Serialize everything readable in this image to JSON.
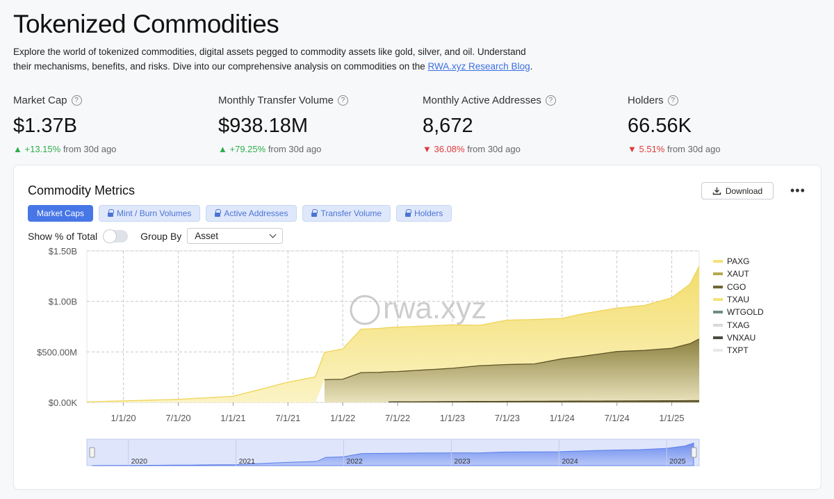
{
  "page": {
    "title": "Tokenized Commodities",
    "intro_text": "Explore the world of tokenized commodities, digital assets pegged to commodity assets like gold, silver, and oil. Understand their mechanisms, benefits, and risks. Dive into our comprehensive analysis on commodities on the ",
    "intro_link": "RWA.xyz Research Blog",
    "intro_end": "."
  },
  "stats": [
    {
      "label": "Market Cap",
      "value": "$1.37B",
      "arrow": "▲",
      "change": "+13.15%",
      "suffix": "from 30d ago",
      "direction": "up"
    },
    {
      "label": "Monthly Transfer Volume",
      "value": "$938.18M",
      "arrow": "▲",
      "change": "+79.25%",
      "suffix": "from 30d ago",
      "direction": "up"
    },
    {
      "label": "Monthly Active Addresses",
      "value": "8,672",
      "arrow": "▼",
      "change": "36.08%",
      "suffix": "from 30d ago",
      "direction": "down"
    },
    {
      "label": "Holders",
      "value": "66.56K",
      "arrow": "▼",
      "change": "5.51%",
      "suffix": "from 30d ago",
      "direction": "down"
    }
  ],
  "card": {
    "title": "Commodity Metrics",
    "download_label": "Download",
    "more_label": "•••",
    "tabs": [
      "Market Caps",
      "Mint / Burn Volumes",
      "Active Addresses",
      "Transfer Volume",
      "Holders"
    ],
    "show_pct_label": "Show % of Total",
    "group_by_label": "Group By",
    "group_by_value": "Asset"
  },
  "chart_data": {
    "type": "area",
    "stacked": true,
    "title": "Commodity Metrics",
    "y_ticks": [
      "$1.50B",
      "$1.00B",
      "$500.00M",
      "$0.00K"
    ],
    "ylim": [
      0,
      1500000000
    ],
    "x_ticks": [
      "1/1/20",
      "7/1/20",
      "1/1/21",
      "7/1/21",
      "1/1/22",
      "7/1/22",
      "1/1/23",
      "7/1/23",
      "1/1/24",
      "7/1/24",
      "1/1/25"
    ],
    "xlim": [
      "2019-09",
      "2025-04"
    ],
    "watermark": "rwa.xyz",
    "legend": [
      "PAXG",
      "XAUT",
      "CGO",
      "TXAU",
      "WTGOLD",
      "TXAG",
      "VNXAU",
      "TXPT"
    ],
    "legend_colors": [
      "#f3e27a",
      "#b5a94e",
      "#6f6636",
      "#f3e27a",
      "#6e8f7c",
      "#d9d9d9",
      "#4a4a3e",
      "#e8e8e8"
    ],
    "series": [
      {
        "name": "CGO",
        "x": [
          "2022-06",
          "2023-01",
          "2023-07",
          "2024-01",
          "2024-07",
          "2025-01",
          "2025-04"
        ],
        "values": [
          5,
          8,
          10,
          12,
          14,
          16,
          18
        ]
      },
      {
        "name": "XAUT",
        "x": [
          "2021-11",
          "2022-01",
          "2022-03",
          "2022-07",
          "2023-01",
          "2023-04",
          "2023-07",
          "2023-10",
          "2024-01",
          "2024-03",
          "2024-07",
          "2024-10",
          "2025-01",
          "2025-03",
          "2025-04"
        ],
        "values": [
          225,
          230,
          295,
          300,
          330,
          355,
          365,
          370,
          420,
          440,
          490,
          500,
          520,
          565,
          610
        ]
      },
      {
        "name": "PAXG",
        "x": [
          "2019-09",
          "2020-01",
          "2020-07",
          "2021-01",
          "2021-07",
          "2021-11",
          "2022-01",
          "2022-03",
          "2022-07",
          "2023-01",
          "2023-04",
          "2023-07",
          "2023-10",
          "2024-01",
          "2024-03",
          "2024-07",
          "2024-10",
          "2025-01",
          "2025-03",
          "2025-04"
        ],
        "values": [
          5,
          15,
          30,
          60,
          200,
          270,
          300,
          430,
          440,
          430,
          400,
          440,
          440,
          400,
          420,
          430,
          445,
          500,
          590,
          720
        ]
      }
    ],
    "navigator": {
      "year_labels": [
        "2020",
        "2021",
        "2022",
        "2023",
        "2024",
        "2025"
      ]
    }
  }
}
